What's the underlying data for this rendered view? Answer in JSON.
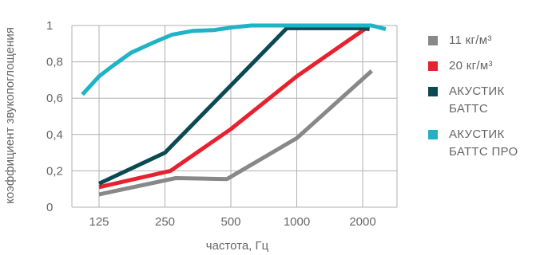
{
  "chart_data": {
    "type": "line",
    "xlabel": "частота, Гц",
    "ylabel": "коэффициент звукопоглощения",
    "x_ticks": [
      "125",
      "250",
      "500",
      "1000",
      "2000"
    ],
    "y_ticks": [
      "0",
      "0,2",
      "0,4",
      "0,6",
      "0,8",
      "1"
    ],
    "ylim": [
      0,
      1
    ],
    "xscale": "log",
    "grid": true,
    "legend_position": "right",
    "series": [
      {
        "name": "11 кг/м³",
        "color": "#888888",
        "points": [
          [
            125,
            0.07
          ],
          [
            280,
            0.16
          ],
          [
            480,
            0.155
          ],
          [
            1000,
            0.38
          ],
          [
            2200,
            0.75
          ]
        ]
      },
      {
        "name": "20 кг/м³",
        "color": "#e8212e",
        "points": [
          [
            125,
            0.11
          ],
          [
            265,
            0.2
          ],
          [
            500,
            0.43
          ],
          [
            1000,
            0.72
          ],
          [
            2100,
            0.99
          ]
        ]
      },
      {
        "name": "АКУСТИК\nБАТТС",
        "color": "#0b4a52",
        "points": [
          [
            125,
            0.13
          ],
          [
            250,
            0.3
          ],
          [
            500,
            0.67
          ],
          [
            900,
            0.985
          ],
          [
            2000,
            0.985
          ],
          [
            2150,
            0.98
          ]
        ]
      },
      {
        "name": "АКУСТИК\nБАТТС ПРО",
        "color": "#1fb3c6",
        "points": [
          [
            105,
            0.62
          ],
          [
            125,
            0.72
          ],
          [
            145,
            0.78
          ],
          [
            175,
            0.85
          ],
          [
            225,
            0.91
          ],
          [
            270,
            0.95
          ],
          [
            335,
            0.97
          ],
          [
            420,
            0.975
          ],
          [
            510,
            0.99
          ],
          [
            620,
            1.0
          ],
          [
            800,
            1.0
          ],
          [
            1100,
            1.0
          ],
          [
            1500,
            1.0
          ],
          [
            2000,
            1.0
          ],
          [
            2200,
            1.0
          ],
          [
            2550,
            0.98
          ]
        ]
      }
    ]
  }
}
